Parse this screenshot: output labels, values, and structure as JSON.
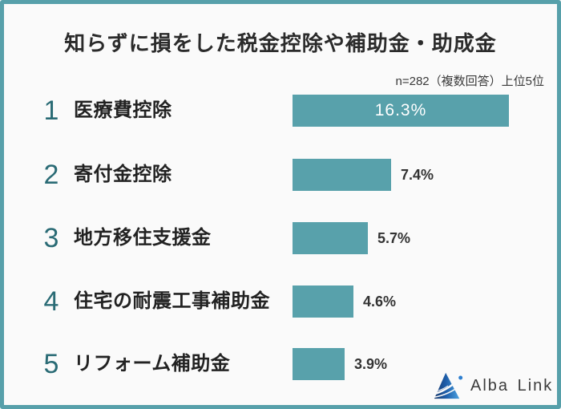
{
  "header": {
    "title": "知らずに損をした税金控除や補助金・助成金",
    "note": "n=282（複数回答）上位5位"
  },
  "chart_data": {
    "type": "bar",
    "orientation": "horizontal",
    "title": "知らずに損をした税金控除や補助金・助成金",
    "note": "n=282（複数回答）上位5位",
    "ranks": [
      1,
      2,
      3,
      4,
      5
    ],
    "categories": [
      "医療費控除",
      "寄付金控除",
      "地方移住支援金",
      "住宅の耐震工事補助金",
      "リフォーム補助金"
    ],
    "values": [
      16.3,
      7.4,
      5.7,
      4.6,
      3.9
    ],
    "value_labels": [
      "16.3%",
      "7.4%",
      "5.7%",
      "4.6%",
      "3.9%"
    ],
    "value_label_inside": [
      true,
      false,
      false,
      false,
      false
    ],
    "xlim": [
      0,
      17
    ],
    "bar_color": "#58a1ab",
    "legend": "none",
    "grid": "off"
  },
  "brand": {
    "name": "Alba Link"
  },
  "colors": {
    "frame": "#57a0aa",
    "background": "#fafafa",
    "bar": "#58a1ab",
    "rank_number": "#2a6b75",
    "title_text": "#2b2b2b",
    "value_text": "#333333",
    "logo_blue_dark": "#16376b",
    "logo_blue": "#2e7fd0",
    "logo_blue_light": "#4aa0e0"
  }
}
